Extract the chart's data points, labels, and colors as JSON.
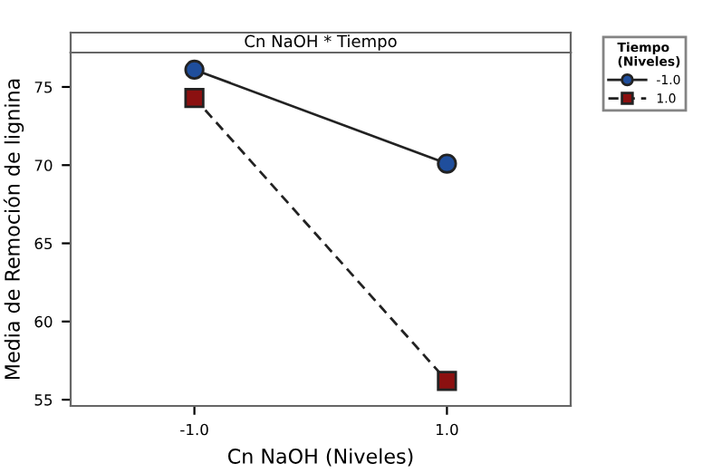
{
  "chart_data": {
    "type": "line",
    "title": "Cn NaOH * Tiempo",
    "xlabel": "Cn NaOH (Niveles)",
    "ylabel": "Media de Remoción de lignina",
    "legend_title": "Tiempo\n(Niveles)",
    "categories": [
      "-1.0",
      "1.0"
    ],
    "series": [
      {
        "name": "-1.0",
        "color": "#1f4e9c",
        "values": [
          76.1,
          70.1
        ],
        "marker": "circle",
        "line_style": "solid"
      },
      {
        "name": "1.0",
        "color": "#8b1010",
        "values": [
          74.3,
          56.2
        ],
        "marker": "square",
        "line_style": "dashed"
      }
    ],
    "ylim": [
      54.6,
      77.2
    ],
    "yticks": [
      55,
      60,
      65,
      70,
      75
    ],
    "grid": false,
    "legend": "top right"
  }
}
